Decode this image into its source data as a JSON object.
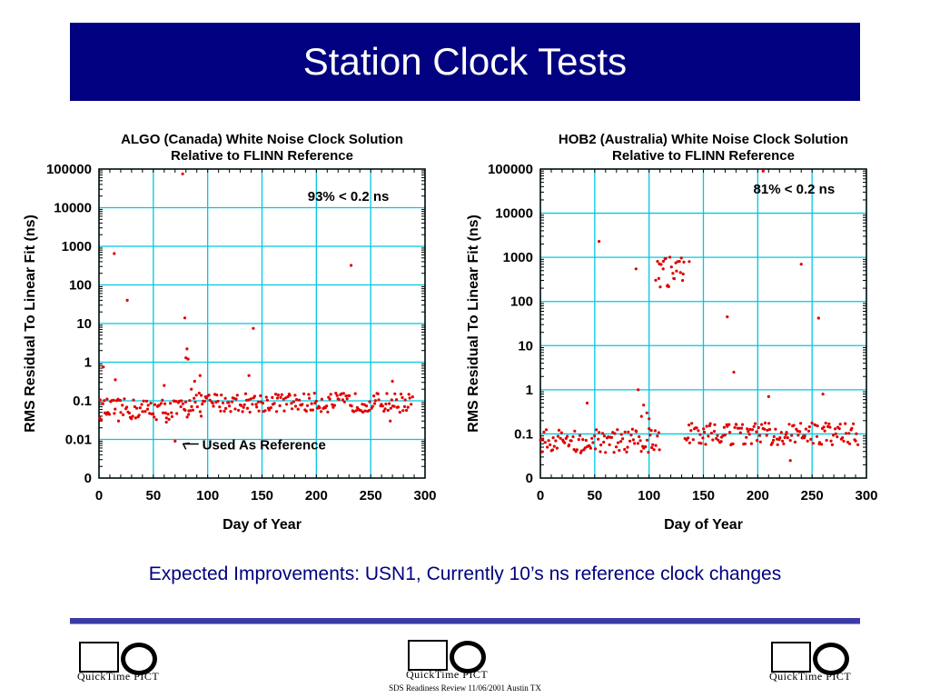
{
  "slide": {
    "title": "Station Clock Tests",
    "caption": "Expected Improvements: USN1, Currently 10’s ns reference clock changes",
    "footer": "SDS Readiness Review 11/06/2001 Austin TX",
    "logos": [
      {
        "text": "QuickTime PICT"
      },
      {
        "text": "QuickTime PICT"
      },
      {
        "text": "QuickTime PICT"
      }
    ]
  },
  "colors": {
    "banner": "#000080",
    "caption_text": "#000080",
    "rule": "#3b3ba8",
    "grid": "#00c8e0",
    "points": "#e00000"
  },
  "chart_data": [
    {
      "type": "scatter",
      "title": "ALGO (Canada) White Noise Clock Solution",
      "subtitle": "Relative to FLINN Reference",
      "xlabel": "Day of Year",
      "ylabel": "RMS Residual To Linear Fit (ns)",
      "xlim": [
        0,
        300
      ],
      "x_ticks": [
        0,
        50,
        100,
        150,
        200,
        250,
        300
      ],
      "y_scale": "log",
      "y_ticks": [
        0.001,
        0.01,
        0.1,
        1,
        10,
        100,
        1000,
        10000,
        100000
      ],
      "y_tick_labels": [
        "0",
        "0.01",
        "0.1",
        "1",
        "10",
        "100",
        "1000",
        "10000",
        "100000"
      ],
      "grid": true,
      "annotations": [
        {
          "text": "93% < 0.2 ns",
          "x": 192,
          "y": 15000
        },
        {
          "text": "Used As Reference",
          "x": 95,
          "y": 0.0055,
          "arrow_to": [
            75,
            0.009
          ]
        }
      ],
      "series": [
        {
          "baseline_low_range": [
            0,
            82
          ],
          "baseline_low_median": 0.06,
          "baseline_high_range": [
            82,
            288
          ],
          "baseline_high_median": 0.09,
          "outliers": [
            {
              "x": 4,
              "y": 0.75
            },
            {
              "x": 8,
              "y": 0.05
            },
            {
              "x": 14,
              "y": 650
            },
            {
              "x": 15,
              "y": 0.35
            },
            {
              "x": 18,
              "y": 0.03
            },
            {
              "x": 26,
              "y": 40
            },
            {
              "x": 60,
              "y": 0.25
            },
            {
              "x": 62,
              "y": 0.028
            },
            {
              "x": 70,
              "y": 0.009
            },
            {
              "x": 77,
              "y": 75000
            },
            {
              "x": 79,
              "y": 14
            },
            {
              "x": 80,
              "y": 1.3
            },
            {
              "x": 81,
              "y": 2.2
            },
            {
              "x": 82,
              "y": 1.2
            },
            {
              "x": 85,
              "y": 0.2
            },
            {
              "x": 88,
              "y": 0.32
            },
            {
              "x": 93,
              "y": 0.45
            },
            {
              "x": 94,
              "y": 0.04
            },
            {
              "x": 138,
              "y": 0.45
            },
            {
              "x": 142,
              "y": 7.5
            },
            {
              "x": 232,
              "y": 320
            },
            {
              "x": 270,
              "y": 0.32
            },
            {
              "x": 268,
              "y": 0.03
            }
          ]
        }
      ]
    },
    {
      "type": "scatter",
      "title": "HOB2 (Australia) White Noise Clock Solution",
      "subtitle": "Relative to FLINN Reference",
      "xlabel": "Day of Year",
      "ylabel": "RMS Residual To Linear Fit (ns)",
      "xlim": [
        0,
        300
      ],
      "x_ticks": [
        0,
        50,
        100,
        150,
        200,
        250,
        300
      ],
      "y_scale": "log",
      "y_ticks": [
        0.01,
        0.1,
        1,
        10,
        100,
        1000,
        10000,
        100000
      ],
      "y_tick_labels": [
        "0",
        "0.1",
        "1",
        "10",
        "100",
        "1000",
        "10000",
        "100000"
      ],
      "grid": true,
      "annotations": [
        {
          "text": "81% < 0.2 ns",
          "x": 196,
          "y": 28000
        }
      ],
      "series": [
        {
          "baseline_low_range": [
            0,
            110
          ],
          "baseline_low_median": 0.07,
          "cluster": {
            "range": [
              106,
              132
            ],
            "median": 450
          },
          "baseline_high_range": [
            133,
            292
          ],
          "baseline_high_median": 0.1,
          "outliers": [
            {
              "x": 43,
              "y": 0.5
            },
            {
              "x": 54,
              "y": 2300
            },
            {
              "x": 88,
              "y": 550
            },
            {
              "x": 90,
              "y": 1.0
            },
            {
              "x": 93,
              "y": 0.25
            },
            {
              "x": 95,
              "y": 0.45
            },
            {
              "x": 98,
              "y": 0.3
            },
            {
              "x": 100,
              "y": 0.22
            },
            {
              "x": 102,
              "y": 0.12
            },
            {
              "x": 137,
              "y": 800
            },
            {
              "x": 172,
              "y": 45
            },
            {
              "x": 178,
              "y": 2.5
            },
            {
              "x": 205,
              "y": 90000
            },
            {
              "x": 210,
              "y": 0.7
            },
            {
              "x": 240,
              "y": 700
            },
            {
              "x": 256,
              "y": 42
            },
            {
              "x": 260,
              "y": 0.8
            },
            {
              "x": 230,
              "y": 0.025
            }
          ]
        }
      ]
    }
  ]
}
